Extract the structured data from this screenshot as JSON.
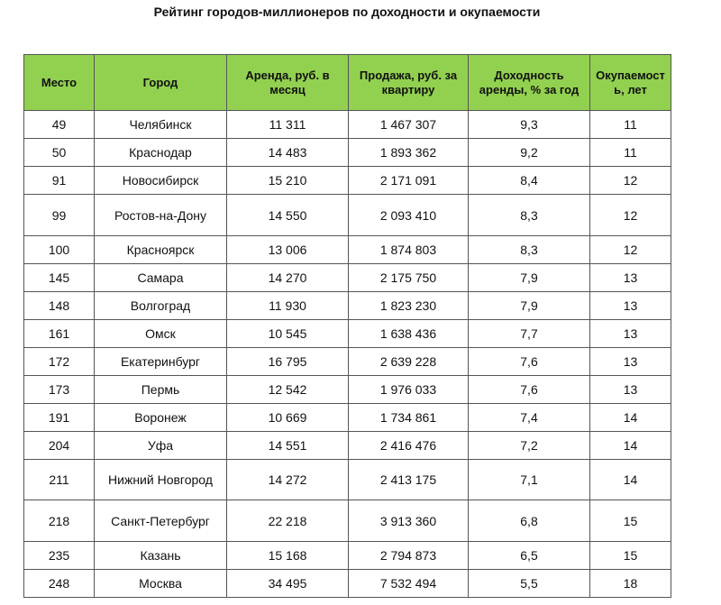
{
  "title": "Рейтинг городов-миллионеров по доходности и окупаемости",
  "table": {
    "header": [
      "Место",
      "Город",
      "Аренда, руб. в месяц",
      "Продажа, руб. за квартиру",
      "Доходность аренды, % за год",
      "Окупаемость, лет"
    ],
    "rows": [
      [
        "49",
        "Челябинск",
        "11 311",
        "1 467 307",
        "9,3",
        "11"
      ],
      [
        "50",
        "Краснодар",
        "14 483",
        "1 893 362",
        "9,2",
        "11"
      ],
      [
        "91",
        "Новосибирск",
        "15 210",
        "2 171 091",
        "8,4",
        "12"
      ],
      [
        "99",
        "Ростов-на-Дону",
        "14 550",
        "2 093 410",
        "8,3",
        "12"
      ],
      [
        "100",
        "Красноярск",
        "13 006",
        "1 874 803",
        "8,3",
        "12"
      ],
      [
        "145",
        "Самара",
        "14 270",
        "2 175 750",
        "7,9",
        "13"
      ],
      [
        "148",
        "Волгоград",
        "11 930",
        "1 823 230",
        "7,9",
        "13"
      ],
      [
        "161",
        "Омск",
        "10 545",
        "1 638 436",
        "7,7",
        "13"
      ],
      [
        "172",
        "Екатеринбург",
        "16 795",
        "2 639 228",
        "7,6",
        "13"
      ],
      [
        "173",
        "Пермь",
        "12 542",
        "1 976 033",
        "7,6",
        "13"
      ],
      [
        "191",
        "Воронеж",
        "10 669",
        "1 734 861",
        "7,4",
        "14"
      ],
      [
        "204",
        "Уфа",
        "14 551",
        "2 416 476",
        "7,2",
        "14"
      ],
      [
        "211",
        "Нижний Новгород",
        "14 272",
        "2 413 175",
        "7,1",
        "14"
      ],
      [
        "218",
        "Санкт-Петербург",
        "22 218",
        "3 913 360",
        "6,8",
        "15"
      ],
      [
        "235",
        "Казань",
        "15 168",
        "2 794 873",
        "6,5",
        "15"
      ],
      [
        "248",
        "Москва",
        "34 495",
        "7 532 494",
        "5,5",
        "18"
      ]
    ]
  }
}
